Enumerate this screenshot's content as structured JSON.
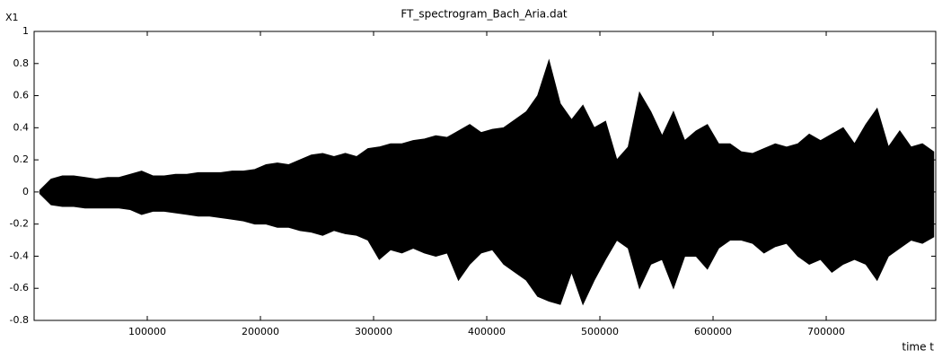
{
  "chart_data": {
    "type": "band",
    "title": "FT_spectrogram_Bach_Aria.dat",
    "x_label": "time t",
    "y_label": "X1",
    "color": "#000000",
    "xlim": [
      0,
      796800
    ],
    "ylim": [
      -0.8,
      1
    ],
    "xticks": [
      100000,
      200000,
      300000,
      400000,
      500000,
      600000,
      700000
    ],
    "yticks": [
      -0.8,
      -0.6,
      -0.4,
      -0.2,
      0,
      0.2,
      0.4,
      0.6,
      0.8,
      1
    ],
    "x": [
      5000,
      15000,
      25000,
      35000,
      45000,
      55000,
      65000,
      75000,
      85000,
      95000,
      105000,
      115000,
      125000,
      135000,
      145000,
      155000,
      165000,
      175000,
      185000,
      195000,
      205000,
      215000,
      225000,
      235000,
      245000,
      255000,
      265000,
      275000,
      285000,
      295000,
      305000,
      315000,
      325000,
      335000,
      345000,
      355000,
      365000,
      375000,
      385000,
      395000,
      405000,
      415000,
      425000,
      435000,
      445000,
      455000,
      465000,
      475000,
      485000,
      495000,
      505000,
      515000,
      525000,
      535000,
      545000,
      555000,
      565000,
      575000,
      585000,
      595000,
      605000,
      615000,
      625000,
      635000,
      645000,
      655000,
      665000,
      675000,
      685000,
      695000,
      705000,
      715000,
      725000,
      735000,
      745000,
      755000,
      765000,
      775000,
      785000,
      795000
    ],
    "high": [
      0.01,
      0.08,
      0.1,
      0.1,
      0.09,
      0.08,
      0.09,
      0.09,
      0.11,
      0.13,
      0.1,
      0.1,
      0.11,
      0.11,
      0.12,
      0.12,
      0.12,
      0.13,
      0.13,
      0.14,
      0.17,
      0.18,
      0.17,
      0.2,
      0.23,
      0.24,
      0.22,
      0.24,
      0.22,
      0.27,
      0.28,
      0.3,
      0.3,
      0.32,
      0.33,
      0.35,
      0.34,
      0.38,
      0.42,
      0.37,
      0.39,
      0.4,
      0.45,
      0.5,
      0.6,
      0.82,
      0.55,
      0.45,
      0.54,
      0.4,
      0.44,
      0.2,
      0.28,
      0.62,
      0.5,
      0.35,
      0.5,
      0.32,
      0.38,
      0.42,
      0.3,
      0.3,
      0.25,
      0.24,
      0.27,
      0.3,
      0.28,
      0.3,
      0.36,
      0.32,
      0.36,
      0.4,
      0.3,
      0.42,
      0.52,
      0.28,
      0.38,
      0.28,
      0.3,
      0.25
    ],
    "low": [
      -0.01,
      -0.08,
      -0.09,
      -0.09,
      -0.1,
      -0.1,
      -0.1,
      -0.1,
      -0.11,
      -0.14,
      -0.12,
      -0.12,
      -0.13,
      -0.14,
      -0.15,
      -0.15,
      -0.16,
      -0.17,
      -0.18,
      -0.2,
      -0.2,
      -0.22,
      -0.22,
      -0.24,
      -0.25,
      -0.27,
      -0.24,
      -0.26,
      -0.27,
      -0.3,
      -0.42,
      -0.36,
      -0.38,
      -0.35,
      -0.38,
      -0.4,
      -0.38,
      -0.55,
      -0.45,
      -0.38,
      -0.36,
      -0.45,
      -0.5,
      -0.55,
      -0.65,
      -0.68,
      -0.7,
      -0.5,
      -0.7,
      -0.55,
      -0.42,
      -0.3,
      -0.35,
      -0.6,
      -0.45,
      -0.42,
      -0.6,
      -0.4,
      -0.4,
      -0.48,
      -0.35,
      -0.3,
      -0.3,
      -0.32,
      -0.38,
      -0.34,
      -0.32,
      -0.4,
      -0.45,
      -0.42,
      -0.5,
      -0.45,
      -0.42,
      -0.45,
      -0.55,
      -0.4,
      -0.35,
      -0.3,
      -0.32,
      -0.28
    ]
  }
}
